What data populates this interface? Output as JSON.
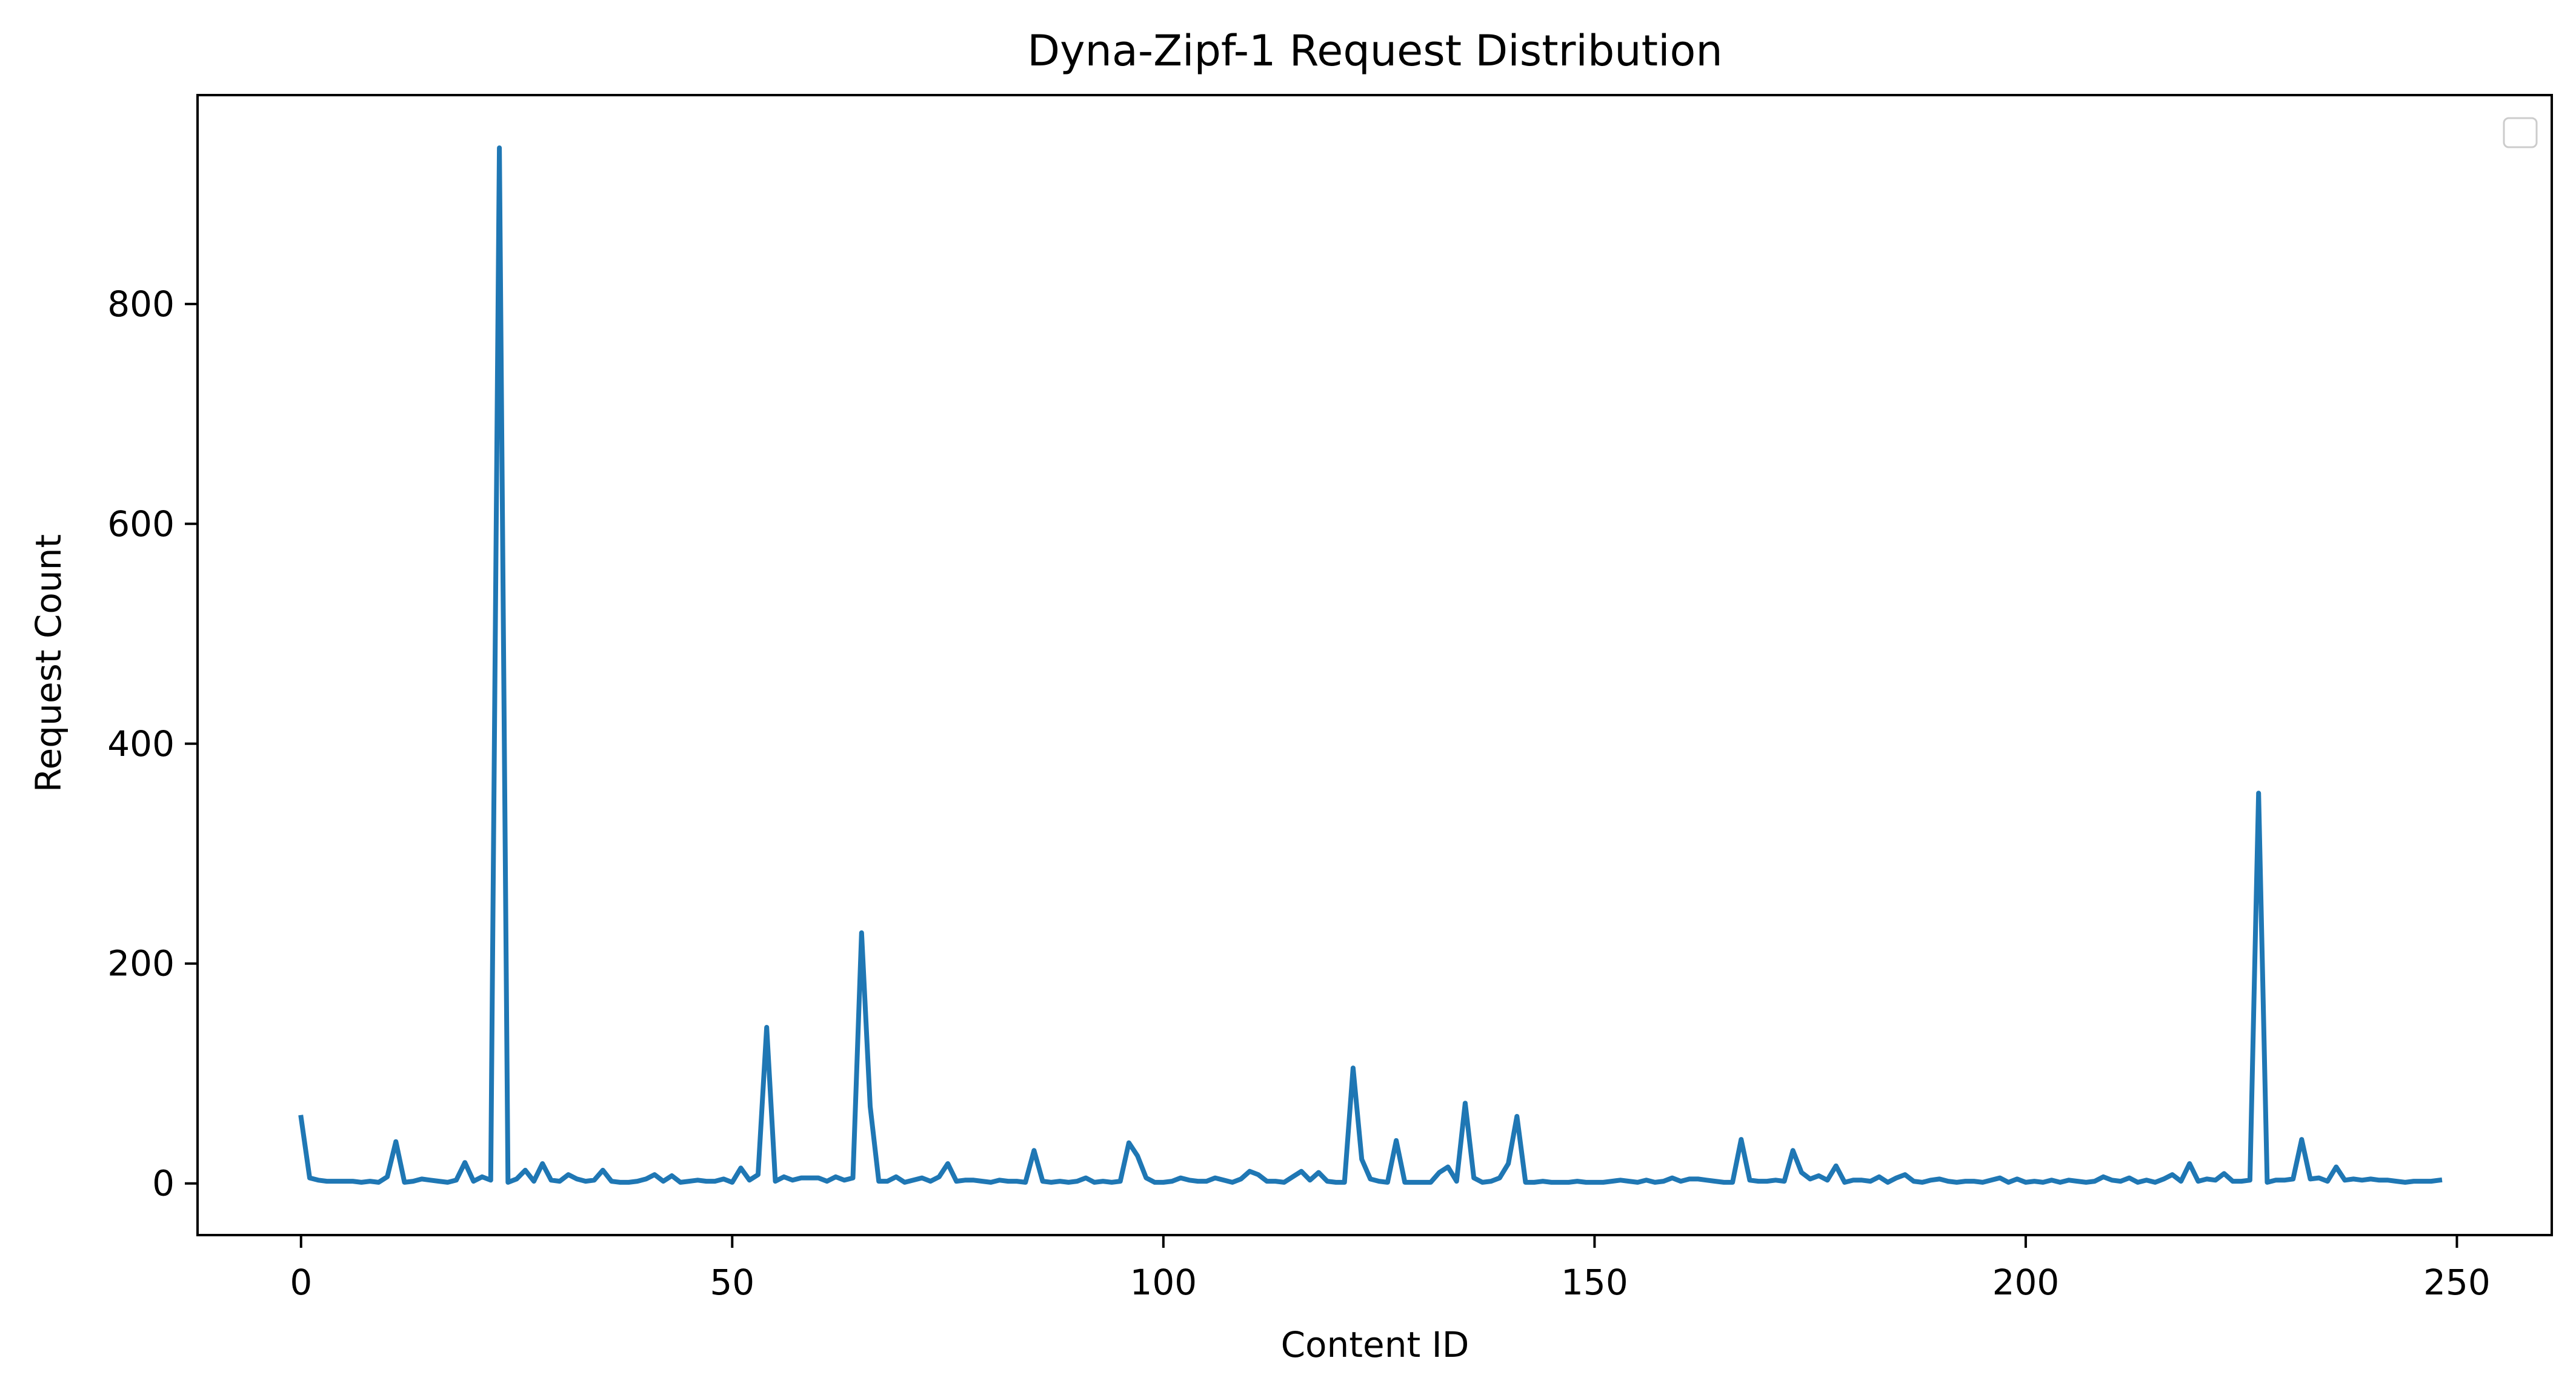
{
  "chart_data": {
    "type": "line",
    "title": "Dyna-Zipf-1 Request Distribution",
    "xlabel": "Content ID",
    "ylabel": "Request Count",
    "xlim": [
      -12,
      261
    ],
    "ylim": [
      -47,
      990
    ],
    "xticks": [
      0,
      50,
      100,
      150,
      200,
      250
    ],
    "yticks": [
      0,
      200,
      400,
      600,
      800
    ],
    "grid": false,
    "legend": "top-right, empty",
    "series": [
      {
        "color": "#1f77b4",
        "points": [
          [
            0,
            60
          ],
          [
            1,
            5
          ],
          [
            2,
            3
          ],
          [
            3,
            2
          ],
          [
            4,
            2
          ],
          [
            5,
            2
          ],
          [
            6,
            2
          ],
          [
            7,
            1
          ],
          [
            8,
            2
          ],
          [
            9,
            1
          ],
          [
            10,
            6
          ],
          [
            11,
            38
          ],
          [
            12,
            1
          ],
          [
            13,
            2
          ],
          [
            14,
            4
          ],
          [
            15,
            3
          ],
          [
            16,
            2
          ],
          [
            17,
            1
          ],
          [
            18,
            3
          ],
          [
            19,
            19
          ],
          [
            20,
            2
          ],
          [
            21,
            6
          ],
          [
            22,
            3
          ],
          [
            23,
            942
          ],
          [
            24,
            1
          ],
          [
            25,
            4
          ],
          [
            26,
            12
          ],
          [
            27,
            2
          ],
          [
            28,
            18
          ],
          [
            29,
            3
          ],
          [
            30,
            2
          ],
          [
            31,
            8
          ],
          [
            32,
            4
          ],
          [
            33,
            2
          ],
          [
            34,
            3
          ],
          [
            35,
            12
          ],
          [
            36,
            2
          ],
          [
            37,
            1
          ],
          [
            38,
            1
          ],
          [
            39,
            2
          ],
          [
            40,
            4
          ],
          [
            41,
            8
          ],
          [
            42,
            2
          ],
          [
            43,
            7
          ],
          [
            44,
            1
          ],
          [
            45,
            2
          ],
          [
            46,
            3
          ],
          [
            47,
            2
          ],
          [
            48,
            2
          ],
          [
            49,
            4
          ],
          [
            50,
            1
          ],
          [
            51,
            14
          ],
          [
            52,
            3
          ],
          [
            53,
            8
          ],
          [
            54,
            142
          ],
          [
            55,
            2
          ],
          [
            56,
            6
          ],
          [
            57,
            3
          ],
          [
            58,
            5
          ],
          [
            59,
            5
          ],
          [
            60,
            5
          ],
          [
            61,
            2
          ],
          [
            62,
            6
          ],
          [
            63,
            3
          ],
          [
            64,
            5
          ],
          [
            65,
            228
          ],
          [
            66,
            70
          ],
          [
            67,
            2
          ],
          [
            68,
            2
          ],
          [
            69,
            6
          ],
          [
            70,
            1
          ],
          [
            71,
            3
          ],
          [
            72,
            5
          ],
          [
            73,
            2
          ],
          [
            74,
            6
          ],
          [
            75,
            18
          ],
          [
            76,
            2
          ],
          [
            77,
            3
          ],
          [
            78,
            3
          ],
          [
            79,
            2
          ],
          [
            80,
            1
          ],
          [
            81,
            3
          ],
          [
            82,
            2
          ],
          [
            83,
            2
          ],
          [
            84,
            1
          ],
          [
            85,
            30
          ],
          [
            86,
            2
          ],
          [
            87,
            1
          ],
          [
            88,
            2
          ],
          [
            89,
            1
          ],
          [
            90,
            2
          ],
          [
            91,
            5
          ],
          [
            92,
            1
          ],
          [
            93,
            2
          ],
          [
            94,
            1
          ],
          [
            95,
            2
          ],
          [
            96,
            37
          ],
          [
            97,
            25
          ],
          [
            98,
            5
          ],
          [
            99,
            1
          ],
          [
            100,
            1
          ],
          [
            101,
            2
          ],
          [
            102,
            5
          ],
          [
            103,
            3
          ],
          [
            104,
            2
          ],
          [
            105,
            2
          ],
          [
            106,
            5
          ],
          [
            107,
            3
          ],
          [
            108,
            1
          ],
          [
            109,
            4
          ],
          [
            110,
            11
          ],
          [
            111,
            8
          ],
          [
            112,
            2
          ],
          [
            113,
            2
          ],
          [
            114,
            1
          ],
          [
            115,
            6
          ],
          [
            116,
            11
          ],
          [
            117,
            3
          ],
          [
            118,
            10
          ],
          [
            119,
            2
          ],
          [
            120,
            1
          ],
          [
            121,
            1
          ],
          [
            122,
            105
          ],
          [
            123,
            22
          ],
          [
            124,
            4
          ],
          [
            125,
            2
          ],
          [
            126,
            1
          ],
          [
            127,
            39
          ],
          [
            128,
            1
          ],
          [
            129,
            1
          ],
          [
            130,
            1
          ],
          [
            131,
            1
          ],
          [
            132,
            10
          ],
          [
            133,
            15
          ],
          [
            134,
            2
          ],
          [
            135,
            73
          ],
          [
            136,
            5
          ],
          [
            137,
            1
          ],
          [
            138,
            2
          ],
          [
            139,
            5
          ],
          [
            140,
            18
          ],
          [
            141,
            61
          ],
          [
            142,
            1
          ],
          [
            143,
            1
          ],
          [
            144,
            2
          ],
          [
            145,
            1
          ],
          [
            146,
            1
          ],
          [
            147,
            1
          ],
          [
            148,
            2
          ],
          [
            149,
            1
          ],
          [
            150,
            1
          ],
          [
            151,
            1
          ],
          [
            152,
            2
          ],
          [
            153,
            3
          ],
          [
            154,
            2
          ],
          [
            155,
            1
          ],
          [
            156,
            3
          ],
          [
            157,
            1
          ],
          [
            158,
            2
          ],
          [
            159,
            5
          ],
          [
            160,
            2
          ],
          [
            161,
            4
          ],
          [
            162,
            4
          ],
          [
            163,
            3
          ],
          [
            164,
            2
          ],
          [
            165,
            1
          ],
          [
            166,
            1
          ],
          [
            167,
            40
          ],
          [
            168,
            3
          ],
          [
            169,
            2
          ],
          [
            170,
            2
          ],
          [
            171,
            3
          ],
          [
            172,
            2
          ],
          [
            173,
            30
          ],
          [
            174,
            10
          ],
          [
            175,
            4
          ],
          [
            176,
            7
          ],
          [
            177,
            3
          ],
          [
            178,
            16
          ],
          [
            179,
            1
          ],
          [
            180,
            3
          ],
          [
            181,
            3
          ],
          [
            182,
            2
          ],
          [
            183,
            6
          ],
          [
            184,
            1
          ],
          [
            185,
            5
          ],
          [
            186,
            8
          ],
          [
            187,
            2
          ],
          [
            188,
            1
          ],
          [
            189,
            3
          ],
          [
            190,
            4
          ],
          [
            191,
            2
          ],
          [
            192,
            1
          ],
          [
            193,
            2
          ],
          [
            194,
            2
          ],
          [
            195,
            1
          ],
          [
            196,
            3
          ],
          [
            197,
            5
          ],
          [
            198,
            1
          ],
          [
            199,
            4
          ],
          [
            200,
            1
          ],
          [
            201,
            2
          ],
          [
            202,
            1
          ],
          [
            203,
            3
          ],
          [
            204,
            1
          ],
          [
            205,
            3
          ],
          [
            206,
            2
          ],
          [
            207,
            1
          ],
          [
            208,
            2
          ],
          [
            209,
            6
          ],
          [
            210,
            3
          ],
          [
            211,
            2
          ],
          [
            212,
            5
          ],
          [
            213,
            1
          ],
          [
            214,
            3
          ],
          [
            215,
            1
          ],
          [
            216,
            4
          ],
          [
            217,
            8
          ],
          [
            218,
            2
          ],
          [
            219,
            18
          ],
          [
            220,
            2
          ],
          [
            221,
            4
          ],
          [
            222,
            3
          ],
          [
            223,
            9
          ],
          [
            224,
            2
          ],
          [
            225,
            2
          ],
          [
            226,
            3
          ],
          [
            227,
            355
          ],
          [
            228,
            1
          ],
          [
            229,
            3
          ],
          [
            230,
            3
          ],
          [
            231,
            4
          ],
          [
            232,
            40
          ],
          [
            233,
            4
          ],
          [
            234,
            5
          ],
          [
            235,
            2
          ],
          [
            236,
            15
          ],
          [
            237,
            3
          ],
          [
            238,
            4
          ],
          [
            239,
            3
          ],
          [
            240,
            4
          ],
          [
            241,
            3
          ],
          [
            242,
            3
          ],
          [
            243,
            2
          ],
          [
            244,
            1
          ],
          [
            245,
            2
          ],
          [
            246,
            2
          ],
          [
            247,
            2
          ],
          [
            248,
            3
          ]
        ]
      }
    ]
  }
}
